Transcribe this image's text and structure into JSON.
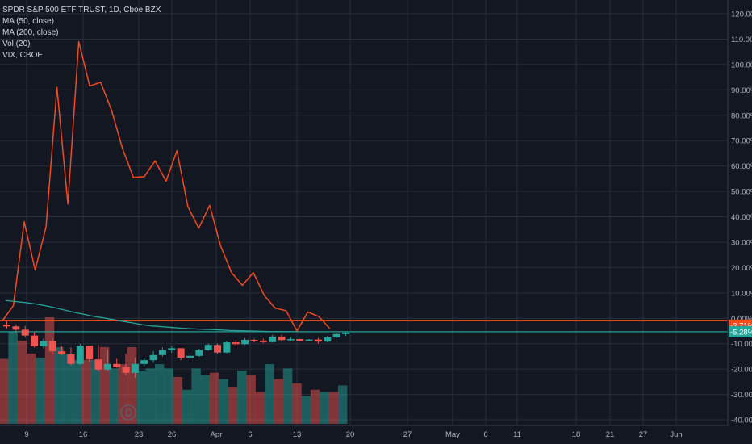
{
  "legend": {
    "line1": "SPDR S&P 500 ETF TRUST, 1D, Cboe BZX",
    "line2": "MA (50, close)",
    "line3": "MA (200, close)",
    "line4": "Vol (20)",
    "line5": "VIX, CBOE"
  },
  "colors": {
    "background": "#131722",
    "grid": "#2a2e39",
    "up": "#26a69a",
    "down": "#ef5350",
    "vix_line": "#f44a1e",
    "ma200": "#26a69a",
    "ma50": "#f44a1e",
    "axis_text": "#b2b5be"
  },
  "chart_data": {
    "type": "line",
    "title": "SPDR S&P 500 ETF TRUST, 1D, Cboe BZX",
    "y_axis": {
      "ticks": [
        "120.00%",
        "110.00%",
        "100.00%",
        "90.00%",
        "80.00%",
        "70.00%",
        "60.00%",
        "50.00%",
        "40.00%",
        "30.00%",
        "20.00%",
        "10.00%",
        "0.00%",
        "-10.00%",
        "-20.00%",
        "-30.00%",
        "-40.00%"
      ],
      "tick_values": [
        120,
        110,
        100,
        90,
        80,
        70,
        60,
        50,
        40,
        30,
        20,
        10,
        0,
        -10,
        -20,
        -30,
        -40
      ],
      "range": [
        -40,
        120
      ],
      "unit": "%"
    },
    "x_axis": {
      "labels": [
        "9",
        "16",
        "23",
        "26",
        "Apr",
        "6",
        "13",
        "20",
        "27",
        "May",
        "6",
        "11",
        "18",
        "21",
        "27",
        "Jun"
      ]
    },
    "vix_series": {
      "name": "VIX, CBOE",
      "values": [
        -1.0,
        5.0,
        38.0,
        19.0,
        36.0,
        91.0,
        45.0,
        109.0,
        91.5,
        93.0,
        82.0,
        67.0,
        55.5,
        55.8,
        62.0,
        54.0,
        66.0,
        44.0,
        35.5,
        44.5,
        28.5,
        18.0,
        13.0,
        18.0,
        9.0,
        4.0,
        3.0,
        -5.0,
        2.5,
        0.7,
        -4.0
      ]
    },
    "ma200_series": {
      "name": "MA (200, close)",
      "values": [
        7.0,
        6.6,
        6.2,
        5.7,
        5.0,
        4.2,
        3.3,
        2.4,
        1.6,
        0.8,
        0.2,
        -0.5,
        -1.2,
        -1.8,
        -2.5,
        -3.0,
        -3.3,
        -3.6,
        -3.9,
        -4.1,
        -4.3,
        -4.4,
        -4.6,
        -4.8,
        -4.9,
        -5.0,
        -5.1,
        -5.2,
        -5.2,
        -5.3,
        -5.28
      ]
    },
    "price_candles": {
      "name": "SPDR S&P 500 ETF TRUST",
      "ohlc": [
        [
          -2.5,
          -1.3,
          -4.0,
          -3.2
        ],
        [
          -3.2,
          -2.4,
          -5.5,
          -4.5
        ],
        [
          -4.5,
          -3.0,
          -7.5,
          -6.8
        ],
        [
          -6.8,
          -5.5,
          -11.5,
          -11.0
        ],
        [
          -11.0,
          -8.0,
          -11.8,
          -9.0
        ],
        [
          -9.0,
          -8.0,
          -14.0,
          -13.0
        ],
        [
          -13.0,
          -11.0,
          -14.5,
          -14.2
        ],
        [
          -14.2,
          -11.5,
          -18.5,
          -18.0
        ],
        [
          -18.0,
          -10.0,
          -18.4,
          -10.8
        ],
        [
          -10.8,
          -11.0,
          -17.0,
          -16.2
        ],
        [
          -16.2,
          -10.5,
          -21.0,
          -20.2
        ],
        [
          -20.2,
          -12.5,
          -20.8,
          -18.0
        ],
        [
          -18.0,
          -16.0,
          -19.5,
          -19.2
        ],
        [
          -19.2,
          -14.0,
          -22.5,
          -21.5
        ],
        [
          -21.5,
          -15.5,
          -23.5,
          -18.0
        ],
        [
          -18.0,
          -15.5,
          -19.0,
          -16.5
        ],
        [
          -16.5,
          -13.0,
          -17.5,
          -14.5
        ],
        [
          -14.5,
          -11.5,
          -15.0,
          -12.5
        ],
        [
          -12.5,
          -11.0,
          -13.5,
          -11.8
        ],
        [
          -11.8,
          -12.0,
          -16.5,
          -15.5
        ],
        [
          -15.5,
          -13.5,
          -16.2,
          -14.8
        ],
        [
          -14.8,
          -12.0,
          -15.2,
          -12.5
        ],
        [
          -12.5,
          -10.0,
          -12.8,
          -10.5
        ],
        [
          -10.5,
          -10.0,
          -14.0,
          -13.5
        ],
        [
          -13.5,
          -9.0,
          -13.8,
          -9.5
        ],
        [
          -9.5,
          -8.5,
          -11.0,
          -10.2
        ],
        [
          -10.2,
          -7.8,
          -10.5,
          -8.5
        ],
        [
          -8.5,
          -8.0,
          -9.5,
          -8.8
        ],
        [
          -8.8,
          -8.0,
          -9.8,
          -9.4
        ],
        [
          -9.4,
          -6.5,
          -9.6,
          -7.2
        ],
        [
          -7.2,
          -6.5,
          -9.2,
          -8.6
        ],
        [
          -8.6,
          -7.5,
          -9.0,
          -8.2
        ],
        [
          -8.2,
          -8.0,
          -9.0,
          -8.9
        ],
        [
          -8.9,
          -8.2,
          -9.1,
          -8.4
        ],
        [
          -8.4,
          -7.8,
          -10.0,
          -9.2
        ],
        [
          -9.2,
          -7.0,
          -9.4,
          -7.5
        ],
        [
          -7.5,
          -5.8,
          -7.8,
          -6.2
        ],
        [
          -6.2,
          -5.0,
          -7.0,
          -5.6
        ]
      ]
    },
    "volume": {
      "name": "Vol (20)",
      "values": [
        0.61,
        0.86,
        0.78,
        0.66,
        0.62,
        1.0,
        0.72,
        0.66,
        0.6,
        0.6,
        0.6,
        0.72,
        0.52,
        0.56,
        0.72,
        0.5,
        0.52,
        0.56,
        0.52,
        0.44,
        0.32,
        0.52,
        0.46,
        0.48,
        0.42,
        0.34,
        0.5,
        0.46,
        0.3,
        0.56,
        0.42,
        0.52,
        0.38,
        0.26,
        0.32,
        0.3,
        0.3,
        0.36
      ],
      "up": [
        false,
        true,
        false,
        false,
        true,
        false,
        true,
        true,
        true,
        false,
        true,
        false,
        true,
        false,
        false,
        true,
        true,
        true,
        true,
        false,
        true,
        true,
        true,
        false,
        true,
        false,
        true,
        false,
        false,
        true,
        false,
        true,
        false,
        true,
        false,
        true,
        false,
        true
      ]
    },
    "horizontal_lines": [
      {
        "name": "vix-level",
        "value": -1.0,
        "color": "#f44a1e"
      },
      {
        "name": "price-level",
        "value": -5.28,
        "color": "#26a69a"
      }
    ],
    "price_tags": [
      {
        "text": "-2.71%",
        "value": -2.71,
        "color": "#f44a1e"
      },
      {
        "text": "-5.28%",
        "value": -5.28,
        "color": "#26a69a"
      }
    ]
  }
}
